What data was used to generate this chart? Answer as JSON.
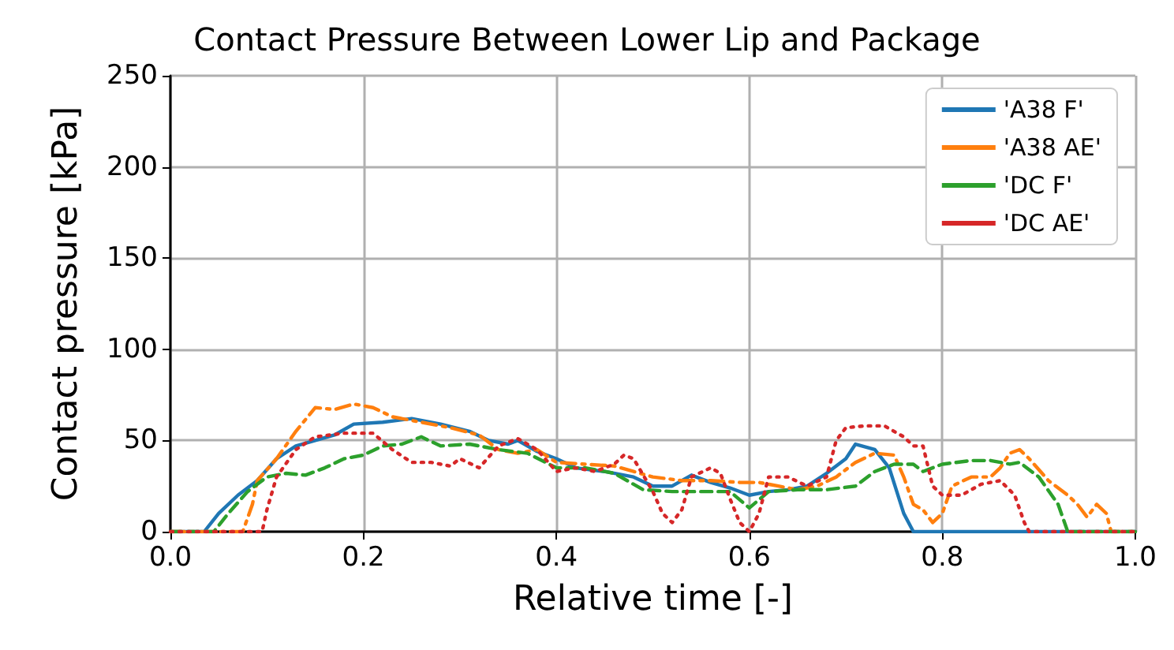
{
  "chart_data": {
    "type": "line",
    "title": "Contact Pressure Between Lower Lip and Package",
    "xlabel": "Relative time [-]",
    "ylabel": "Contact pressure [kPa]",
    "xlim": [
      0,
      1
    ],
    "xticks": [
      {
        "value": 0,
        "label": "0.0"
      },
      0.2,
      0.4,
      0.6,
      0.8,
      {
        "value": 1,
        "label": "1.0"
      }
    ],
    "ylim": [
      0,
      250
    ],
    "yticks": [
      0,
      50,
      100,
      150,
      200,
      250
    ],
    "grid": true,
    "legend": "top right",
    "series": [
      {
        "name": "'A38 F'",
        "color": "#1f77b4",
        "line_style": "solid",
        "x": [
          0,
          0.035,
          0.05,
          0.07,
          0.09,
          0.11,
          0.13,
          0.15,
          0.17,
          0.19,
          0.22,
          0.25,
          0.28,
          0.31,
          0.33,
          0.35,
          0.36,
          0.38,
          0.4,
          0.42,
          0.45,
          0.48,
          0.5,
          0.52,
          0.54,
          0.56,
          0.58,
          0.6,
          0.62,
          0.64,
          0.66,
          0.68,
          0.7,
          0.71,
          0.73,
          0.745,
          0.76,
          0.77,
          1
        ],
        "values": [
          0,
          0,
          10,
          20,
          28,
          40,
          47,
          50,
          53,
          59,
          60,
          62,
          59,
          55,
          50,
          48,
          50,
          44,
          40,
          35,
          33,
          30,
          25,
          25,
          31,
          27,
          24,
          20,
          22,
          23,
          25,
          32,
          40,
          48,
          45,
          35,
          10,
          0,
          0
        ]
      },
      {
        "name": "'A38 AE'",
        "color": "#ff7f0e",
        "line_style": "dashdot",
        "x": [
          0,
          0.075,
          0.085,
          0.09,
          0.11,
          0.13,
          0.15,
          0.17,
          0.19,
          0.21,
          0.23,
          0.26,
          0.29,
          0.32,
          0.34,
          0.36,
          0.38,
          0.4,
          0.43,
          0.46,
          0.48,
          0.5,
          0.53,
          0.56,
          0.59,
          0.61,
          0.63,
          0.65,
          0.67,
          0.69,
          0.71,
          0.73,
          0.75,
          0.76,
          0.77,
          0.78,
          0.79,
          0.8,
          0.81,
          0.83,
          0.85,
          0.86,
          0.87,
          0.88,
          0.89,
          0.91,
          0.93,
          0.94,
          0.95,
          0.96,
          0.97,
          0.975,
          1
        ],
        "values": [
          0,
          0,
          15,
          28,
          40,
          55,
          68,
          67,
          70,
          68,
          63,
          60,
          57,
          53,
          45,
          43,
          45,
          38,
          37,
          36,
          33,
          30,
          28,
          28,
          27,
          27,
          25,
          23,
          25,
          30,
          38,
          43,
          42,
          30,
          15,
          12,
          5,
          10,
          25,
          30,
          30,
          35,
          43,
          45,
          40,
          28,
          20,
          15,
          8,
          15,
          10,
          0,
          0
        ]
      },
      {
        "name": "'DC F'",
        "color": "#2ca02c",
        "line_style": "dashed",
        "x": [
          0,
          0.045,
          0.06,
          0.08,
          0.1,
          0.12,
          0.14,
          0.16,
          0.18,
          0.2,
          0.22,
          0.24,
          0.26,
          0.28,
          0.31,
          0.34,
          0.37,
          0.4,
          0.43,
          0.46,
          0.49,
          0.52,
          0.55,
          0.58,
          0.6,
          0.62,
          0.65,
          0.68,
          0.71,
          0.73,
          0.75,
          0.77,
          0.78,
          0.8,
          0.83,
          0.85,
          0.87,
          0.88,
          0.9,
          0.92,
          0.93,
          1
        ],
        "values": [
          0,
          0,
          10,
          22,
          30,
          32,
          31,
          35,
          40,
          42,
          47,
          48,
          52,
          47,
          48,
          45,
          43,
          35,
          35,
          32,
          23,
          22,
          22,
          22,
          13,
          22,
          23,
          23,
          25,
          33,
          37,
          37,
          33,
          37,
          39,
          39,
          37,
          38,
          30,
          15,
          0,
          0
        ]
      },
      {
        "name": "'DC AE'",
        "color": "#d62728",
        "line_style": "dotted",
        "x": [
          0,
          0.095,
          0.1,
          0.11,
          0.13,
          0.15,
          0.18,
          0.21,
          0.23,
          0.25,
          0.27,
          0.29,
          0.3,
          0.32,
          0.34,
          0.36,
          0.38,
          0.4,
          0.42,
          0.44,
          0.46,
          0.47,
          0.48,
          0.5,
          0.51,
          0.52,
          0.53,
          0.54,
          0.56,
          0.57,
          0.58,
          0.59,
          0.6,
          0.61,
          0.62,
          0.64,
          0.66,
          0.68,
          0.69,
          0.7,
          0.72,
          0.74,
          0.76,
          0.77,
          0.78,
          0.79,
          0.8,
          0.82,
          0.84,
          0.86,
          0.875,
          0.885,
          0.89,
          1
        ],
        "values": [
          0,
          0,
          12,
          30,
          45,
          52,
          54,
          54,
          45,
          38,
          38,
          36,
          40,
          35,
          47,
          51,
          45,
          33,
          35,
          33,
          37,
          42,
          40,
          22,
          10,
          5,
          12,
          30,
          35,
          32,
          18,
          5,
          0,
          10,
          30,
          30,
          25,
          30,
          50,
          57,
          58,
          58,
          52,
          47,
          47,
          25,
          20,
          20,
          26,
          28,
          20,
          5,
          0,
          0
        ]
      }
    ]
  }
}
